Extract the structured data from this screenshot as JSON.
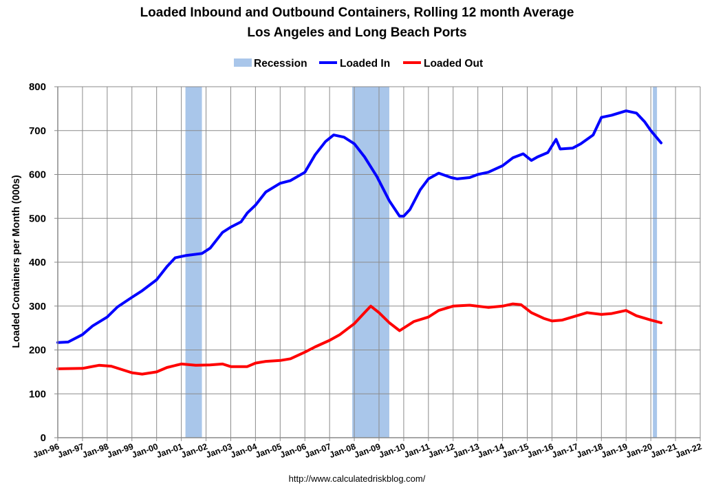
{
  "chart_data": {
    "type": "line",
    "title": "Loaded Inbound and Outbound Containers, Rolling 12 month Average",
    "subtitle": "Los Angeles and Long Beach Ports",
    "ylabel": "Loaded Containers per Month (000s)",
    "xlabel": "",
    "source": "http://www.calculatedriskblog.com/",
    "ylim": [
      0,
      800
    ],
    "yticks": [
      "0",
      "100",
      "200",
      "300",
      "400",
      "500",
      "600",
      "700",
      "800"
    ],
    "xticks": [
      "Jan-96",
      "Jan-97",
      "Jan-98",
      "Jan-99",
      "Jan-00",
      "Jan-01",
      "Jan-02",
      "Jan-03",
      "Jan-04",
      "Jan-05",
      "Jan-06",
      "Jan-07",
      "Jan-08",
      "Jan-09",
      "Jan-10",
      "Jan-11",
      "Jan-12",
      "Jan-13",
      "Jan-14",
      "Jan-15",
      "Jan-16",
      "Jan-17",
      "Jan-18",
      "Jan-19",
      "Jan-20",
      "Jan-21",
      "Jan-22"
    ],
    "grid": true,
    "legend_position": "top-center",
    "legend": [
      {
        "name": "Recession",
        "color": "#a9c6ea",
        "kind": "area"
      },
      {
        "name": "Loaded In",
        "color": "#0000ff",
        "kind": "line"
      },
      {
        "name": "Loaded Out",
        "color": "#ff0000",
        "kind": "line"
      }
    ],
    "recessions": [
      {
        "start": "2001-03",
        "end": "2001-11"
      },
      {
        "start": "2007-12",
        "end": "2009-06"
      },
      {
        "start": "2020-02",
        "end": "2020-04"
      }
    ],
    "series": [
      {
        "name": "Loaded In",
        "color": "#0000ff",
        "points": [
          [
            "1996-01",
            217
          ],
          [
            "1996-06",
            218
          ],
          [
            "1997-01",
            235
          ],
          [
            "1997-06",
            255
          ],
          [
            "1998-01",
            275
          ],
          [
            "1998-06",
            298
          ],
          [
            "1999-01",
            320
          ],
          [
            "1999-06",
            335
          ],
          [
            "2000-01",
            360
          ],
          [
            "2000-06",
            390
          ],
          [
            "2000-10",
            410
          ],
          [
            "2001-03",
            415
          ],
          [
            "2001-11",
            420
          ],
          [
            "2002-03",
            432
          ],
          [
            "2002-09",
            468
          ],
          [
            "2003-01",
            480
          ],
          [
            "2003-06",
            492
          ],
          [
            "2003-09",
            512
          ],
          [
            "2004-01",
            530
          ],
          [
            "2004-06",
            560
          ],
          [
            "2005-01",
            580
          ],
          [
            "2005-06",
            586
          ],
          [
            "2006-01",
            605
          ],
          [
            "2006-06",
            645
          ],
          [
            "2006-11",
            675
          ],
          [
            "2007-03",
            690
          ],
          [
            "2007-08",
            685
          ],
          [
            "2008-01",
            670
          ],
          [
            "2008-06",
            640
          ],
          [
            "2008-12",
            595
          ],
          [
            "2009-06",
            540
          ],
          [
            "2009-11",
            505
          ],
          [
            "2010-01",
            505
          ],
          [
            "2010-04",
            520
          ],
          [
            "2010-09",
            565
          ],
          [
            "2011-01",
            590
          ],
          [
            "2011-06",
            603
          ],
          [
            "2011-12",
            593
          ],
          [
            "2012-03",
            590
          ],
          [
            "2012-09",
            593
          ],
          [
            "2013-01",
            600
          ],
          [
            "2013-06",
            605
          ],
          [
            "2014-01",
            620
          ],
          [
            "2014-06",
            638
          ],
          [
            "2014-11",
            647
          ],
          [
            "2015-03",
            632
          ],
          [
            "2015-06",
            640
          ],
          [
            "2015-11",
            650
          ],
          [
            "2016-03",
            680
          ],
          [
            "2016-05",
            658
          ],
          [
            "2016-11",
            660
          ],
          [
            "2017-03",
            670
          ],
          [
            "2017-09",
            690
          ],
          [
            "2018-01",
            730
          ],
          [
            "2018-06",
            735
          ],
          [
            "2019-01",
            745
          ],
          [
            "2019-06",
            740
          ],
          [
            "2019-10",
            720
          ],
          [
            "2020-01",
            700
          ],
          [
            "2020-06",
            672
          ]
        ]
      },
      {
        "name": "Loaded Out",
        "color": "#ff0000",
        "points": [
          [
            "1996-01",
            157
          ],
          [
            "1997-01",
            158
          ],
          [
            "1997-09",
            165
          ],
          [
            "1998-03",
            163
          ],
          [
            "1999-01",
            148
          ],
          [
            "1999-06",
            145
          ],
          [
            "2000-01",
            150
          ],
          [
            "2000-06",
            160
          ],
          [
            "2001-01",
            168
          ],
          [
            "2001-08",
            165
          ],
          [
            "2002-03",
            166
          ],
          [
            "2002-09",
            168
          ],
          [
            "2003-01",
            162
          ],
          [
            "2003-09",
            162
          ],
          [
            "2004-01",
            170
          ],
          [
            "2004-06",
            174
          ],
          [
            "2005-01",
            176
          ],
          [
            "2005-06",
            180
          ],
          [
            "2006-01",
            195
          ],
          [
            "2006-06",
            207
          ],
          [
            "2007-01",
            222
          ],
          [
            "2007-06",
            235
          ],
          [
            "2008-01",
            260
          ],
          [
            "2008-06",
            285
          ],
          [
            "2008-09",
            300
          ],
          [
            "2009-01",
            285
          ],
          [
            "2009-06",
            262
          ],
          [
            "2009-11",
            244
          ],
          [
            "2010-06",
            265
          ],
          [
            "2011-01",
            275
          ],
          [
            "2011-06",
            290
          ],
          [
            "2012-01",
            300
          ],
          [
            "2012-09",
            302
          ],
          [
            "2013-06",
            297
          ],
          [
            "2014-01",
            300
          ],
          [
            "2014-06",
            305
          ],
          [
            "2014-10",
            303
          ],
          [
            "2015-03",
            285
          ],
          [
            "2015-09",
            272
          ],
          [
            "2016-01",
            266
          ],
          [
            "2016-06",
            268
          ],
          [
            "2017-01",
            278
          ],
          [
            "2017-06",
            285
          ],
          [
            "2018-01",
            281
          ],
          [
            "2018-06",
            283
          ],
          [
            "2019-01",
            290
          ],
          [
            "2019-06",
            278
          ],
          [
            "2020-01",
            268
          ],
          [
            "2020-06",
            262
          ]
        ]
      }
    ]
  }
}
